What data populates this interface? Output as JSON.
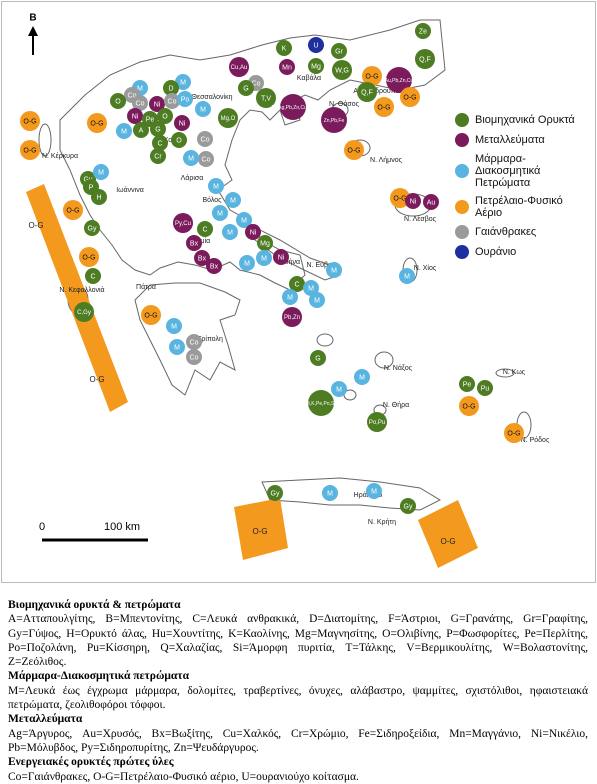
{
  "north_label": "Β",
  "scale_bar": {
    "zero": "0",
    "distance": "100 km"
  },
  "legend": [
    {
      "label": "Βιομηχανικά Ορυκτά",
      "color": "#4d7c23"
    },
    {
      "label": "Μεταλλεύματα",
      "color": "#7b1b5c"
    },
    {
      "label": "Μάρμαρα-Διακοσμητικά Πετρώματα",
      "color": "#5ab4e0"
    },
    {
      "label": "Πετρέλαιο-Φυσικό Αέριο",
      "color": "#f39a1e"
    },
    {
      "label": "Γαιάνθρακες",
      "color": "#9a9a9a"
    },
    {
      "label": "Ουράνιο",
      "color": "#1f2f9e"
    }
  ],
  "places": [
    "Θεσσαλονίκη",
    "Καβάλα",
    "Αλεξανδρούπολη",
    "Ν. Θάσος",
    "Κοζάνη",
    "Ιωάννινα",
    "Λάρισα",
    "Ν. Κέρκυρα",
    "Ν. Λήμνος",
    "Βόλος",
    "Λαμία",
    "Ν. Λέσβος",
    "Ν. Εύβοια",
    "Ν. Χίος",
    "Ν. Κεφαλλονιά",
    "Πάτρα",
    "Αθήνα",
    "Τρίπολη",
    "Ν. Νάξος",
    "Ν. Κως",
    "Ν. Θήρα",
    "Ν. Ρόδος",
    "Ηράκλειο",
    "Ν. Κρήτη"
  ],
  "offshore_areas": [
    {
      "label": "O-G",
      "color": "#f39a1e"
    },
    {
      "label": "O-G",
      "color": "#f39a1e"
    },
    {
      "label": "O-G",
      "color": "#f39a1e"
    },
    {
      "label": "O-G",
      "color": "#f39a1e"
    }
  ],
  "deposits": [
    {
      "label": "K",
      "color": "#4d7c23"
    },
    {
      "label": "U",
      "color": "#1f2f9e"
    },
    {
      "label": "Gr",
      "color": "#4d7c23"
    },
    {
      "label": "Ze",
      "color": "#4d7c23"
    },
    {
      "label": "Q,F",
      "color": "#4d7c23"
    },
    {
      "label": "Cu,Au",
      "color": "#7b1b5c"
    },
    {
      "label": "Mn",
      "color": "#7b1b5c"
    },
    {
      "label": "Mg",
      "color": "#4d7c23"
    },
    {
      "label": "W,G",
      "color": "#4d7c23"
    },
    {
      "label": "O-G",
      "color": "#f39a1e"
    },
    {
      "label": "Au,Pb,Zn,Cu",
      "color": "#7b1b5c"
    },
    {
      "label": "O-G",
      "color": "#f39a1e"
    },
    {
      "label": "Q,F",
      "color": "#4d7c23"
    },
    {
      "label": "O-G",
      "color": "#f39a1e"
    },
    {
      "label": "M",
      "color": "#5ab4e0"
    },
    {
      "label": "M",
      "color": "#5ab4e0"
    },
    {
      "label": "Co",
      "color": "#9a9a9a"
    },
    {
      "label": "O",
      "color": "#4d7c23"
    },
    {
      "label": "D",
      "color": "#4d7c23"
    },
    {
      "label": "Co",
      "color": "#9a9a9a"
    },
    {
      "label": "Ni",
      "color": "#7b1b5c"
    },
    {
      "label": "Co",
      "color": "#9a9a9a"
    },
    {
      "label": "Po",
      "color": "#5ab4e0"
    },
    {
      "label": "M",
      "color": "#5ab4e0"
    },
    {
      "label": "Co",
      "color": "#9a9a9a"
    },
    {
      "label": "G",
      "color": "#4d7c23"
    },
    {
      "label": "T,V",
      "color": "#4d7c23"
    },
    {
      "label": "Au,Ag,Pb,Zn,Cu,Mn",
      "color": "#7b1b5c"
    },
    {
      "label": "Zn,Pb,Fe",
      "color": "#7b1b5c"
    },
    {
      "label": "Mg,O",
      "color": "#4d7c23"
    },
    {
      "label": "Ni",
      "color": "#7b1b5c"
    },
    {
      "label": "Pe",
      "color": "#4d7c23"
    },
    {
      "label": "O",
      "color": "#4d7c23"
    },
    {
      "label": "Ni",
      "color": "#7b1b5c"
    },
    {
      "label": "M",
      "color": "#5ab4e0"
    },
    {
      "label": "A",
      "color": "#4d7c23"
    },
    {
      "label": "G",
      "color": "#4d7c23"
    },
    {
      "label": "O",
      "color": "#4d7c23"
    },
    {
      "label": "C",
      "color": "#4d7c23"
    },
    {
      "label": "Cr",
      "color": "#4d7c23"
    },
    {
      "label": "Co",
      "color": "#9a9a9a"
    },
    {
      "label": "Co",
      "color": "#9a9a9a"
    },
    {
      "label": "M",
      "color": "#5ab4e0"
    },
    {
      "label": "O-G",
      "color": "#f39a1e"
    },
    {
      "label": "O-G",
      "color": "#f39a1e"
    },
    {
      "label": "Gy",
      "color": "#4d7c23"
    },
    {
      "label": "M",
      "color": "#5ab4e0"
    },
    {
      "label": "P",
      "color": "#4d7c23"
    },
    {
      "label": "H",
      "color": "#4d7c23"
    },
    {
      "label": "O-G",
      "color": "#f39a1e"
    },
    {
      "label": "Gy",
      "color": "#4d7c23"
    },
    {
      "label": "M",
      "color": "#5ab4e0"
    },
    {
      "label": "M",
      "color": "#5ab4e0"
    },
    {
      "label": "M",
      "color": "#5ab4e0"
    },
    {
      "label": "Py,Cu",
      "color": "#7b1b5c"
    },
    {
      "label": "C",
      "color": "#4d7c23"
    },
    {
      "label": "M",
      "color": "#5ab4e0"
    },
    {
      "label": "M",
      "color": "#5ab4e0"
    },
    {
      "label": "Bx",
      "color": "#7b1b5c"
    },
    {
      "label": "Bx",
      "color": "#7b1b5c"
    },
    {
      "label": "Bx",
      "color": "#7b1b5c"
    },
    {
      "label": "Ni",
      "color": "#7b1b5c"
    },
    {
      "label": "Mg",
      "color": "#4d7c23"
    },
    {
      "label": "M",
      "color": "#5ab4e0"
    },
    {
      "label": "Ni",
      "color": "#7b1b5c"
    },
    {
      "label": "M",
      "color": "#5ab4e0"
    },
    {
      "label": "C",
      "color": "#4d7c23"
    },
    {
      "label": "O-G",
      "color": "#f39a1e"
    },
    {
      "label": "C,Gy",
      "color": "#4d7c23"
    },
    {
      "label": "O-G",
      "color": "#f39a1e"
    },
    {
      "label": "M",
      "color": "#5ab4e0"
    },
    {
      "label": "M",
      "color": "#5ab4e0"
    },
    {
      "label": "Co",
      "color": "#9a9a9a"
    },
    {
      "label": "Co",
      "color": "#9a9a9a"
    },
    {
      "label": "C",
      "color": "#4d7c23"
    },
    {
      "label": "M",
      "color": "#5ab4e0"
    },
    {
      "label": "M",
      "color": "#5ab4e0"
    },
    {
      "label": "M",
      "color": "#5ab4e0"
    },
    {
      "label": "Pb,Zn",
      "color": "#7b1b5c"
    },
    {
      "label": "M",
      "color": "#5ab4e0"
    },
    {
      "label": "G",
      "color": "#4d7c23"
    },
    {
      "label": "B,K,Pe,Po,Si",
      "color": "#4d7c23"
    },
    {
      "label": "Po,Pu",
      "color": "#4d7c23"
    },
    {
      "label": "M",
      "color": "#5ab4e0"
    },
    {
      "label": "M",
      "color": "#5ab4e0"
    },
    {
      "label": "Pe",
      "color": "#4d7c23"
    },
    {
      "label": "Pu",
      "color": "#4d7c23"
    },
    {
      "label": "O-G",
      "color": "#f39a1e"
    },
    {
      "label": "O-G",
      "color": "#f39a1e"
    },
    {
      "label": "O-G",
      "color": "#f39a1e"
    },
    {
      "label": "Ni",
      "color": "#7b1b5c"
    },
    {
      "label": "Au",
      "color": "#7b1b5c"
    },
    {
      "label": "M",
      "color": "#5ab4e0"
    },
    {
      "label": "O-G",
      "color": "#f39a1e"
    },
    {
      "label": "Gy",
      "color": "#4d7c23"
    },
    {
      "label": "M",
      "color": "#5ab4e0"
    },
    {
      "label": "M",
      "color": "#5ab4e0"
    },
    {
      "label": "Gy",
      "color": "#4d7c23"
    },
    {
      "label": "O-G",
      "color": "#f39a1e"
    }
  ],
  "description": [
    {
      "title": "Βιομηχανικά ορυκτά & πετρώματα",
      "text": "A=Ατταπουλγίτης, B=Μπεντονίτης, C=Λευκά ανθρακικά, D=Διατομίτης, F=Άστριοι, G=Γρανάτης, Gr=Γραφίτης, Gy=Γύψος, H=Ορυκτό άλας, Hu=Χουντίτης, K=Καολίνης, Mg=Μαγνησίτης, O=Ολιβίνης, P=Φωσφορίτες, Pe=Περλίτης, Po=Ποζολάνη, Pu=Κίσσηρη, Q=Χαλαζίας, Si=Άμορφη πυριτία, T=Τάλκης, V=Βερμικουλίτης, W=Βολαστονίτης, Z=Ζεόλιθος."
    },
    {
      "title": "Μάρμαρα-Διακοσμητικά πετρώματα",
      "text": "M=Λευκά έως έγχρωμα μάρμαρα, δολομίτες, τραβερτίνες, όνυχες, αλάβαστρο, ψαμμίτες, σχιστόλιθοι, ηφαιστειακά πετρώματα, ζεολιθοφόροι τόφφοι."
    },
    {
      "title": "Μεταλλεύματα",
      "text": "Ag=Άργυρος, Au=Χρυσός, Bx=Βωξίτης, Cu=Χαλκός, Cr=Χρώμιο, Fe=Σιδηροξείδια, Mn=Μαγγάνιο, Ni=Νικέλιο, Pb=Μόλυβδος, Py=Σιδηροπυρίτης, Zn=Ψευδάργυρος."
    },
    {
      "title": "Ενεργειακές ορυκτές πρώτες ύλες",
      "text": "Co=Γαιάνθρακες, O-G=Πετρέλαιο-Φυσικό αέριο, U=ουρανιούχο κοίτασμα."
    }
  ]
}
